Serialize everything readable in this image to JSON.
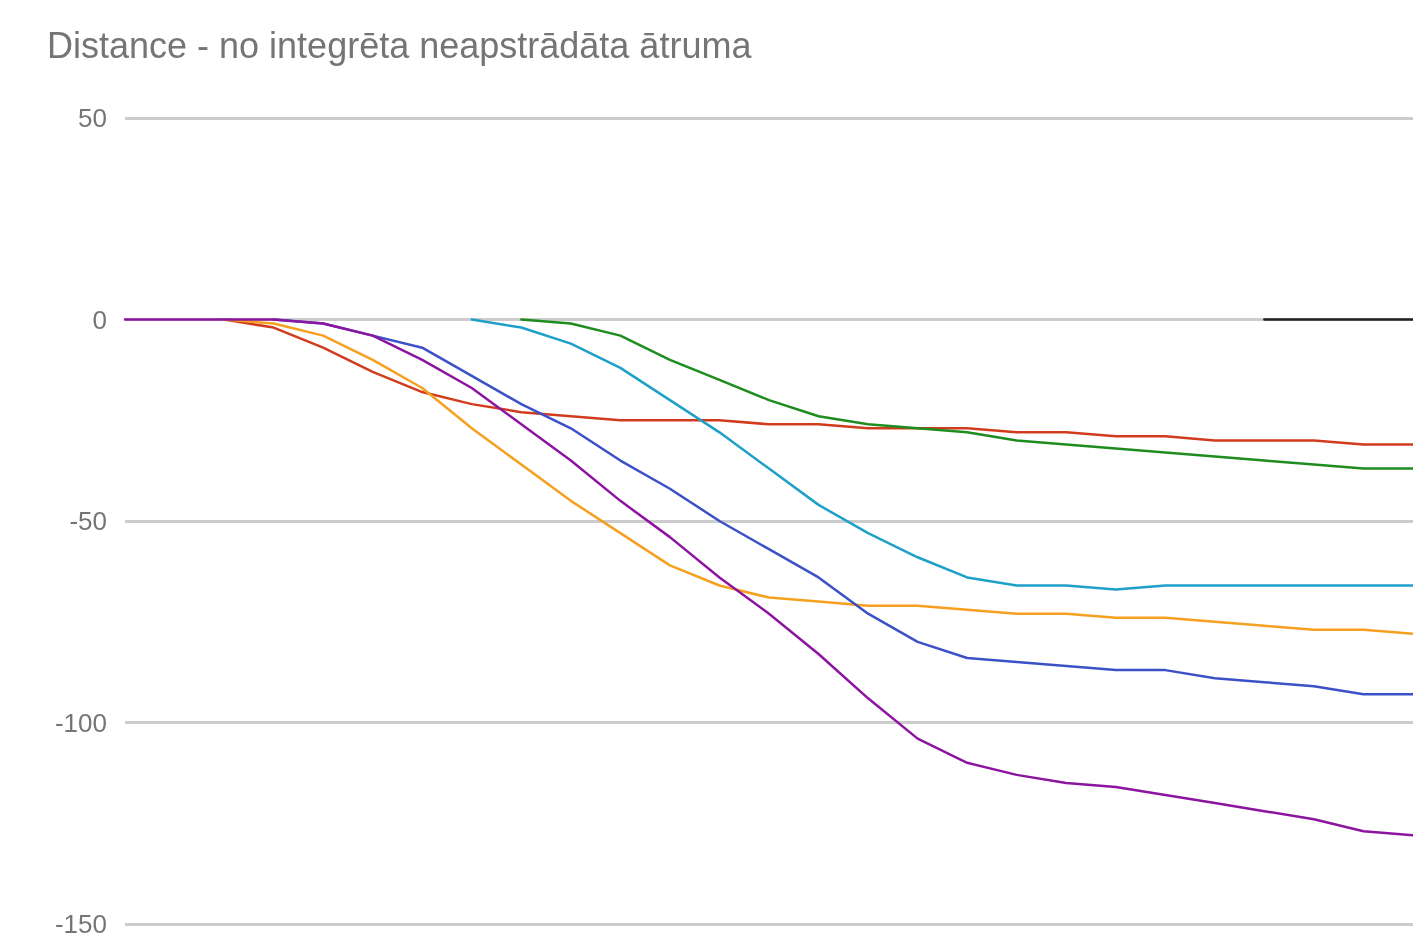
{
  "chart_data": {
    "type": "line",
    "title": "Distance - no integrēta neapstrādāta ātruma",
    "categories": [
      null,
      null,
      null,
      null,
      null,
      null,
      null,
      null,
      null,
      null,
      null,
      null,
      null,
      null,
      null,
      null,
      null,
      null,
      null,
      null,
      null,
      null,
      null,
      null,
      null,
      null,
      null
    ],
    "series": [
      {
        "color": "#222222",
        "values": [
          null,
          null,
          null,
          null,
          null,
          null,
          null,
          null,
          null,
          null,
          null,
          null,
          null,
          null,
          null,
          null,
          null,
          null,
          null,
          null,
          null,
          null,
          null,
          0,
          0,
          0,
          0
        ]
      },
      {
        "color": "#d23c1e",
        "values": [
          null,
          null,
          0,
          -2,
          -7,
          -13,
          -18,
          -21,
          -23,
          -24,
          -25,
          -25,
          -25,
          -26,
          -26,
          -27,
          -27,
          -27,
          -28,
          -28,
          -29,
          -29,
          -30,
          -30,
          -30,
          -31,
          -31
        ]
      },
      {
        "color": "#1e8c1e",
        "values": [
          null,
          null,
          null,
          null,
          null,
          null,
          null,
          null,
          0,
          -1,
          -4,
          -10,
          -15,
          -20,
          -24,
          -26,
          -27,
          -28,
          -30,
          -31,
          -32,
          -33,
          -34,
          -35,
          -36,
          -37,
          -37
        ]
      },
      {
        "color": "#1ea0c8",
        "values": [
          null,
          null,
          null,
          null,
          null,
          null,
          null,
          0,
          -2,
          -6,
          -12,
          -20,
          -28,
          -37,
          -46,
          -53,
          -59,
          -64,
          -66,
          -66,
          -67,
          -66,
          -66,
          -66,
          -66,
          -66,
          -66
        ]
      },
      {
        "color": "#f5a01e",
        "values": [
          null,
          null,
          0,
          -1,
          -4,
          -10,
          -17,
          -27,
          -36,
          -45,
          -53,
          -61,
          -66,
          -69,
          -70,
          -71,
          -71,
          -72,
          -73,
          -73,
          -74,
          -74,
          -75,
          -76,
          -77,
          -77,
          -78
        ]
      },
      {
        "color": "#3c50c8",
        "values": [
          null,
          null,
          null,
          0,
          -1,
          -4,
          -7,
          -14,
          -21,
          -27,
          -35,
          -42,
          -50,
          -57,
          -64,
          -73,
          -80,
          -84,
          -85,
          -86,
          -87,
          -87,
          -89,
          -90,
          -91,
          -93,
          -93
        ]
      },
      {
        "color": "#8c14a0",
        "values": [
          0,
          0,
          0,
          0,
          -1,
          -4,
          -10,
          -17,
          -26,
          -35,
          -45,
          -54,
          -64,
          -73,
          -83,
          -94,
          -104,
          -110,
          -113,
          -115,
          -116,
          -118,
          -120,
          -122,
          -124,
          -127,
          -128
        ]
      }
    ],
    "ylim": [
      -150,
      50
    ],
    "yticks": [
      -150,
      -100,
      -50,
      0,
      50
    ],
    "grid": "y",
    "tick_labels": "y",
    "marker": "none",
    "line_style": "solid"
  }
}
